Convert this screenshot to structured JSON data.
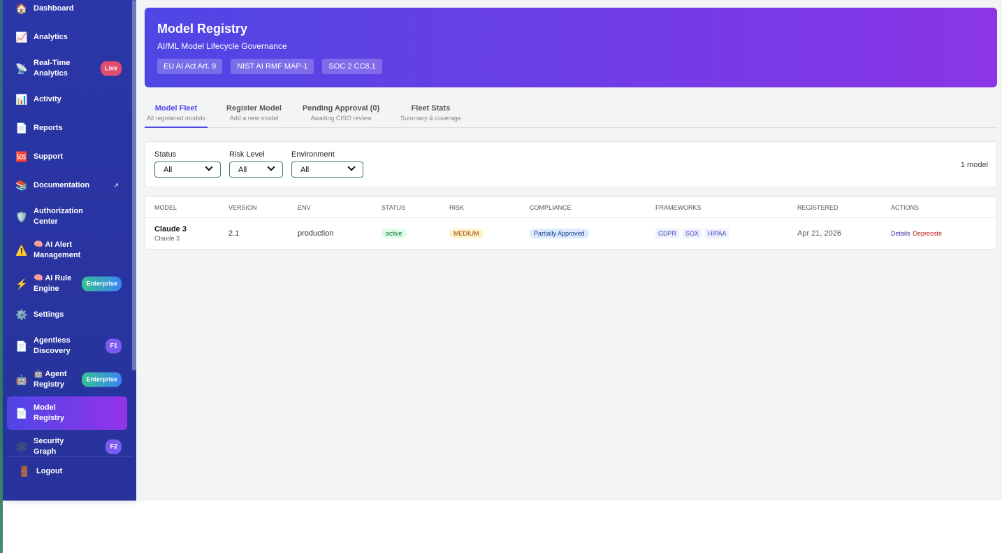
{
  "sidebar": {
    "items": [
      {
        "icon": "🏠",
        "label": "Dashboard"
      },
      {
        "icon": "📈",
        "label": "Analytics"
      },
      {
        "icon": "📡",
        "label": "Real-Time Analytics",
        "badge": "Live",
        "badge_color": "#e14d6e"
      },
      {
        "icon": "📊",
        "label": "Activity"
      },
      {
        "icon": "📄",
        "label": "Reports"
      },
      {
        "icon": "🆘",
        "label": "Support"
      },
      {
        "icon": "📚",
        "label": "Documentation",
        "external": "↗"
      },
      {
        "icon": "🛡️",
        "label": "Authorization Center"
      },
      {
        "icon": "⚠️",
        "label": "🧠 AI Alert Management"
      },
      {
        "icon": "⚡",
        "label": "🧠 AI Rule Engine",
        "badge": "Enterprise",
        "badge_color": "linear-gradient(90deg,#34c38f,#3b82f6)"
      },
      {
        "icon": "⚙️",
        "label": "Settings"
      },
      {
        "icon": "📄",
        "label": "Agentless Discovery",
        "badge": "F1",
        "badge_color": "#7c5cf0"
      },
      {
        "icon": "🤖",
        "label": "🤖 Agent Registry",
        "badge": "Enterprise",
        "badge_color": "linear-gradient(90deg,#34c38f,#3b82f6)"
      },
      {
        "icon": "📄",
        "label": "Model Registry",
        "active": true
      },
      {
        "icon": "🕸️",
        "label": "Security Graph",
        "badge": "F2",
        "badge_color": "#7c5cf0"
      }
    ],
    "logout": {
      "icon": "🚪",
      "label": "Logout"
    }
  },
  "header": {
    "title": "Model Registry",
    "subtitle": "AI/ML Model Lifecycle Governance",
    "badges": [
      "EU AI Act Art. 9",
      "NIST AI RMF MAP-1",
      "SOC 2 CC8.1"
    ]
  },
  "tabs": [
    {
      "label": "Model Fleet",
      "sub": "All registered models",
      "active": true
    },
    {
      "label": "Register Model",
      "sub": "Add a new model"
    },
    {
      "label": "Pending Approval (0)",
      "sub": "Awaiting CISO review"
    },
    {
      "label": "Fleet Stats",
      "sub": "Summary & coverage"
    }
  ],
  "filters": {
    "fields": [
      {
        "label": "Status",
        "value": "All"
      },
      {
        "label": "Risk Level",
        "value": "All"
      },
      {
        "label": "Environment",
        "value": "All"
      }
    ],
    "count": "1 model"
  },
  "table": {
    "columns": [
      "MODEL",
      "VERSION",
      "ENV",
      "STATUS",
      "RISK",
      "COMPLIANCE",
      "FRAMEWORKS",
      "REGISTERED",
      "ACTIONS"
    ],
    "rows": [
      {
        "model": "Claude 3",
        "model_sub": "Claude 3",
        "version": "2.1",
        "env": "production",
        "status": "active",
        "risk": "MEDIUM",
        "compliance": "Partially Approved",
        "frameworks": [
          "GDPR",
          "SOX",
          "HIPAA"
        ],
        "registered": "Apr 21, 2026",
        "actions": [
          "Details",
          "Deprecate"
        ]
      }
    ]
  }
}
